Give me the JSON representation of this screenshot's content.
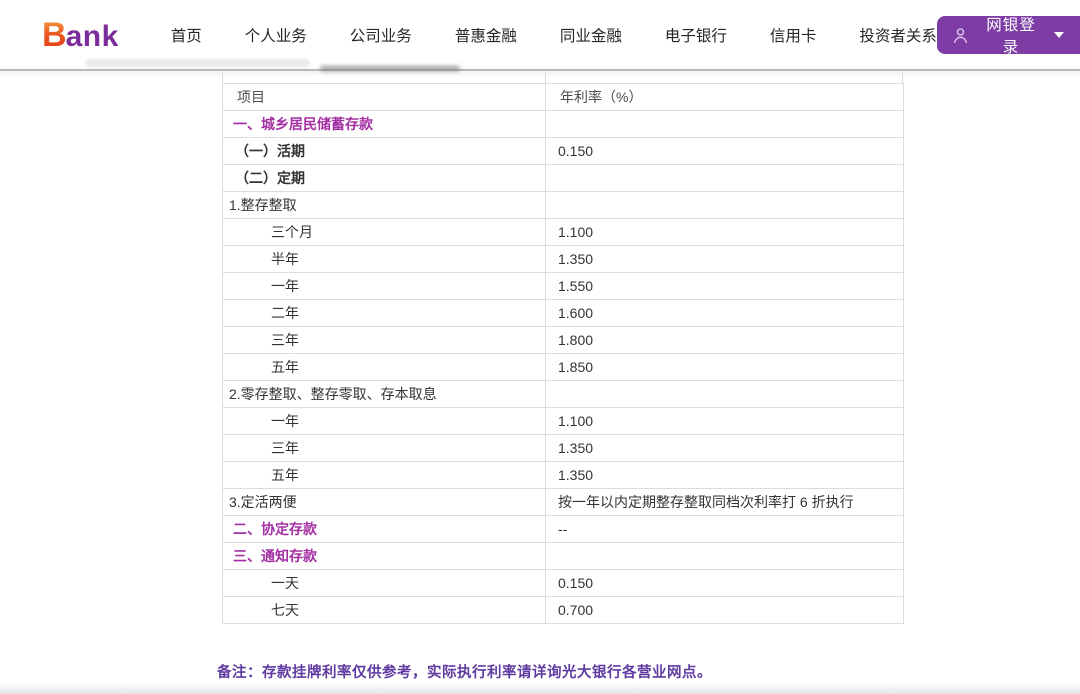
{
  "header": {
    "logo": {
      "b": "B",
      "rest": "ank"
    },
    "nav_items": [
      {
        "label": "首页"
      },
      {
        "label": "个人业务"
      },
      {
        "label": "公司业务"
      },
      {
        "label": "普惠金融"
      },
      {
        "label": "同业金融"
      },
      {
        "label": "电子银行"
      },
      {
        "label": "信用卡"
      },
      {
        "label": "投资者关系"
      }
    ],
    "login": {
      "label": "网银登录"
    }
  },
  "table": {
    "columns": [
      "项目",
      "年利率（%）"
    ],
    "rows": [
      {
        "label": "一、城乡居民储蓄存款",
        "value": "",
        "style": "section"
      },
      {
        "label": "（一）活期",
        "value": "0.150",
        "style": "bold"
      },
      {
        "label": "（二）定期",
        "value": "",
        "style": "bold"
      },
      {
        "label": "1.整存整取",
        "value": "",
        "style": "plain"
      },
      {
        "label": "三个月",
        "value": "1.100",
        "style": "sub"
      },
      {
        "label": "半年",
        "value": "1.350",
        "style": "sub"
      },
      {
        "label": "一年",
        "value": "1.550",
        "style": "sub"
      },
      {
        "label": "二年",
        "value": "1.600",
        "style": "sub"
      },
      {
        "label": "三年",
        "value": "1.800",
        "style": "sub"
      },
      {
        "label": "五年",
        "value": "1.850",
        "style": "sub"
      },
      {
        "label": "2.零存整取、整存零取、存本取息",
        "value": "",
        "style": "plain"
      },
      {
        "label": "一年",
        "value": "1.100",
        "style": "sub"
      },
      {
        "label": "三年",
        "value": "1.350",
        "style": "sub"
      },
      {
        "label": "五年",
        "value": "1.350",
        "style": "sub"
      },
      {
        "label": "3.定活两便",
        "value": "按一年以内定期整存整取同档次利率打 6 折执行",
        "style": "plain"
      },
      {
        "label": "二、协定存款",
        "value": "--",
        "style": "section"
      },
      {
        "label": "三、通知存款",
        "value": "",
        "style": "section"
      },
      {
        "label": "一天",
        "value": "0.150",
        "style": "sub"
      },
      {
        "label": "七天",
        "value": "0.700",
        "style": "sub"
      }
    ]
  },
  "note": "备注：存款挂牌利率仅供参考，实际执行利率请详询光大银行各营业网点。",
  "colors": {
    "brand_purple": "#7d3da5",
    "section_magenta": "#a32fa3",
    "note_purple": "#5f3aa0",
    "logo_orange": "#e8491f",
    "logo_purple": "#7b2d9b",
    "table_border": "#dcdcdc"
  }
}
